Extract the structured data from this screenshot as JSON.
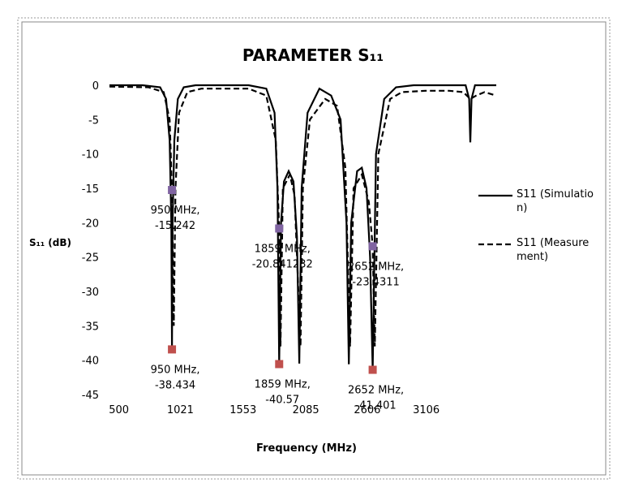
{
  "chart_data": {
    "type": "line",
    "title": "PARAMETER S₁₁",
    "xlabel": "Frequency (MHz)",
    "ylabel": "S₁₁ (dB)",
    "xlim": [
      420,
      3700
    ],
    "xticks": [
      500,
      1021,
      1553,
      2085,
      2606,
      3106
    ],
    "ylim": [
      -45,
      0
    ],
    "yticks": [
      0,
      -5,
      -10,
      -15,
      -20,
      -25,
      -30,
      -35,
      -40,
      -45
    ],
    "grid": false,
    "legend": "right",
    "series": [
      {
        "name": "S11 (Simulation)",
        "color": "#000000",
        "dash": false,
        "x": [
          420,
          700,
          850,
          900,
          930,
          945,
          950,
          955,
          970,
          1000,
          1050,
          1150,
          1600,
          1750,
          1820,
          1845,
          1859,
          1875,
          1900,
          1940,
          1980,
          2010,
          2030,
          2050,
          2100,
          2200,
          2300,
          2380,
          2430,
          2450,
          2470,
          2520,
          2560,
          2600,
          2630,
          2652,
          2680,
          2750,
          2850,
          3000,
          3440,
          3470,
          3480,
          3490,
          3520,
          3700
        ],
        "values": [
          0,
          0,
          -0.3,
          -2,
          -8,
          -20,
          -38.434,
          -20,
          -8,
          -2,
          -0.3,
          0,
          0,
          -0.5,
          -4,
          -15,
          -40.57,
          -20,
          -14,
          -12.5,
          -14,
          -22,
          -40.5,
          -15,
          -4,
          -0.5,
          -1.5,
          -5,
          -20,
          -40.6,
          -20,
          -12.5,
          -12,
          -15,
          -25,
          -41.401,
          -10,
          -2,
          -0.3,
          0,
          0,
          -2,
          -8.3,
          -2,
          0,
          0
        ]
      },
      {
        "name": "S11 (Measurement)",
        "color": "#000000",
        "dash": true,
        "x": [
          420,
          750,
          880,
          930,
          950,
          965,
          980,
          1010,
          1080,
          1200,
          1600,
          1750,
          1830,
          1859,
          1870,
          1890,
          1950,
          1990,
          2040,
          2060,
          2120,
          2250,
          2350,
          2420,
          2460,
          2490,
          2560,
          2620,
          2652,
          2670,
          2700,
          2800,
          2900,
          3100,
          3300,
          3420,
          3480,
          3530,
          3600,
          3700
        ],
        "values": [
          -0.2,
          -0.3,
          -1,
          -5,
          -15.242,
          -35,
          -15,
          -4,
          -1,
          -0.5,
          -0.5,
          -1.5,
          -8,
          -20.841232,
          -38,
          -15,
          -13,
          -16,
          -38,
          -15,
          -5,
          -2,
          -3,
          -12,
          -38,
          -15,
          -13,
          -17,
          -23.4311,
          -38,
          -10,
          -2,
          -1,
          -0.8,
          -0.8,
          -1,
          -2,
          -1.5,
          -1,
          -1.5
        ]
      }
    ],
    "points": [
      {
        "x": 950,
        "y": -15.242,
        "color": "#8064a2",
        "label": [
          "950 MHz,",
          "-15.242"
        ]
      },
      {
        "x": 1859,
        "y": -20.841232,
        "color": "#8064a2",
        "label": [
          "1859 MHz,",
          "-20.841232"
        ]
      },
      {
        "x": 2652,
        "y": -23.4311,
        "color": "#8064a2",
        "label": [
          "2652 MHz,",
          "-23.4311"
        ]
      },
      {
        "x": 950,
        "y": -38.434,
        "color": "#c0504d",
        "label": [
          "950 MHz,",
          "-38.434"
        ]
      },
      {
        "x": 1859,
        "y": -40.57,
        "color": "#c0504d",
        "label": [
          "1859 MHz,",
          "-40.57"
        ]
      },
      {
        "x": 2652,
        "y": -41.401,
        "color": "#c0504d",
        "label": [
          "2652 MHz,",
          "-41.401"
        ]
      }
    ]
  }
}
